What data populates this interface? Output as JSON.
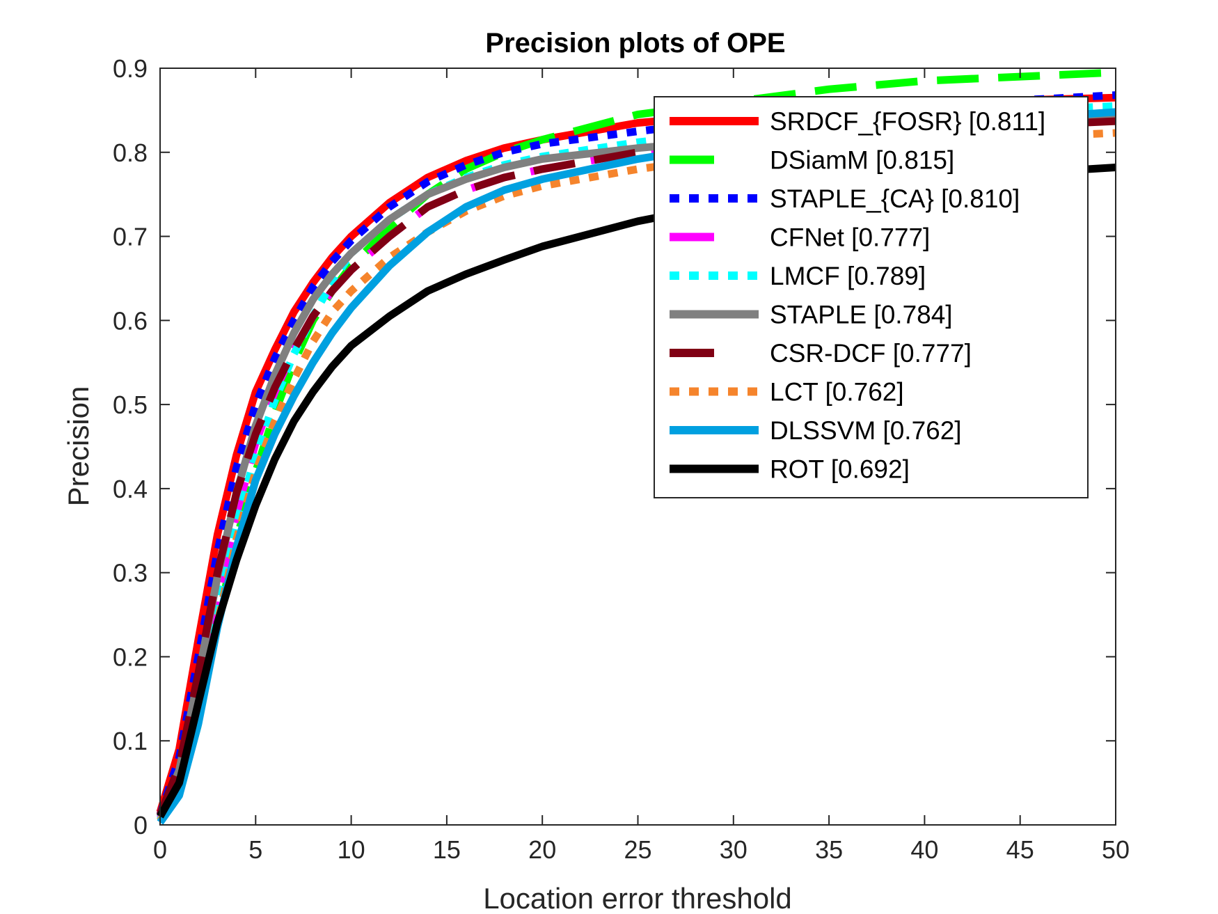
{
  "chart_data": {
    "type": "line",
    "title": "Precision plots of OPE",
    "xlabel": "Location error threshold",
    "ylabel": "Precision",
    "xlim": [
      0,
      50
    ],
    "ylim": [
      0,
      0.9
    ],
    "xticks": [
      0,
      5,
      10,
      15,
      20,
      25,
      30,
      35,
      40,
      45,
      50
    ],
    "yticks": [
      0,
      0.1,
      0.2,
      0.3,
      0.4,
      0.5,
      0.6,
      0.7,
      0.8,
      0.9
    ],
    "grid": false,
    "legend_position": "top-right",
    "x": [
      0,
      1,
      2,
      3,
      4,
      5,
      6,
      7,
      8,
      9,
      10,
      12,
      14,
      16,
      18,
      20,
      25,
      30,
      35,
      40,
      45,
      50
    ],
    "series": [
      {
        "name": "SRDCF_{FOSR} [0.811]",
        "color": "#ff0000",
        "dash": "solid",
        "values": [
          0.015,
          0.09,
          0.22,
          0.345,
          0.44,
          0.515,
          0.565,
          0.61,
          0.645,
          0.675,
          0.7,
          0.74,
          0.77,
          0.79,
          0.805,
          0.815,
          0.835,
          0.845,
          0.852,
          0.858,
          0.862,
          0.865
        ]
      },
      {
        "name": "DSiamM [0.815]",
        "color": "#00ff00",
        "dash": "dash",
        "values": [
          0.005,
          0.04,
          0.12,
          0.24,
          0.34,
          0.42,
          0.49,
          0.55,
          0.6,
          0.635,
          0.665,
          0.71,
          0.75,
          0.78,
          0.8,
          0.815,
          0.845,
          0.86,
          0.875,
          0.885,
          0.89,
          0.895
        ]
      },
      {
        "name": "STAPLE_{CA} [0.810]",
        "color": "#0000ff",
        "dash": "dot",
        "values": [
          0.012,
          0.08,
          0.2,
          0.325,
          0.425,
          0.5,
          0.555,
          0.6,
          0.64,
          0.67,
          0.695,
          0.735,
          0.765,
          0.785,
          0.8,
          0.81,
          0.825,
          0.838,
          0.848,
          0.856,
          0.862,
          0.868
        ]
      },
      {
        "name": "CFNet [0.777]",
        "color": "#ff00ff",
        "dash": "dash",
        "values": [
          0.008,
          0.05,
          0.15,
          0.27,
          0.37,
          0.455,
          0.515,
          0.565,
          0.605,
          0.635,
          0.66,
          0.7,
          0.735,
          0.755,
          0.77,
          0.78,
          0.8,
          0.812,
          0.82,
          0.828,
          0.835,
          0.84
        ]
      },
      {
        "name": "LMCF [0.789]",
        "color": "#00ffff",
        "dash": "dot",
        "values": [
          0.006,
          0.045,
          0.14,
          0.26,
          0.36,
          0.44,
          0.505,
          0.56,
          0.605,
          0.645,
          0.68,
          0.72,
          0.75,
          0.77,
          0.785,
          0.795,
          0.812,
          0.825,
          0.835,
          0.842,
          0.85,
          0.855
        ]
      },
      {
        "name": "STAPLE [0.784]",
        "color": "#808080",
        "dash": "solid",
        "values": [
          0.01,
          0.065,
          0.175,
          0.295,
          0.395,
          0.475,
          0.535,
          0.585,
          0.625,
          0.655,
          0.68,
          0.72,
          0.75,
          0.768,
          0.782,
          0.792,
          0.805,
          0.815,
          0.822,
          0.83,
          0.836,
          0.84
        ]
      },
      {
        "name": "CSR-DCF [0.777]",
        "color": "#800014",
        "dash": "dash",
        "values": [
          0.012,
          0.07,
          0.18,
          0.3,
          0.395,
          0.465,
          0.52,
          0.565,
          0.605,
          0.635,
          0.66,
          0.7,
          0.735,
          0.755,
          0.77,
          0.78,
          0.8,
          0.812,
          0.82,
          0.826,
          0.832,
          0.837
        ]
      },
      {
        "name": "LCT [0.762]",
        "color": "#f5842c",
        "dash": "dot",
        "values": [
          0.005,
          0.04,
          0.125,
          0.24,
          0.34,
          0.42,
          0.48,
          0.53,
          0.575,
          0.61,
          0.635,
          0.675,
          0.705,
          0.73,
          0.748,
          0.76,
          0.78,
          0.795,
          0.805,
          0.812,
          0.818,
          0.823
        ]
      },
      {
        "name": "DLSSVM [0.762]",
        "color": "#00a0e0",
        "dash": "solid",
        "values": [
          0.003,
          0.035,
          0.12,
          0.235,
          0.33,
          0.41,
          0.465,
          0.51,
          0.55,
          0.585,
          0.615,
          0.665,
          0.705,
          0.735,
          0.755,
          0.768,
          0.792,
          0.81,
          0.822,
          0.832,
          0.84,
          0.848
        ]
      },
      {
        "name": "ROT [0.692]",
        "color": "#000000",
        "dash": "solid",
        "values": [
          0.01,
          0.05,
          0.145,
          0.24,
          0.315,
          0.38,
          0.435,
          0.48,
          0.515,
          0.545,
          0.57,
          0.605,
          0.635,
          0.655,
          0.672,
          0.688,
          0.718,
          0.74,
          0.755,
          0.765,
          0.775,
          0.782
        ]
      }
    ]
  }
}
